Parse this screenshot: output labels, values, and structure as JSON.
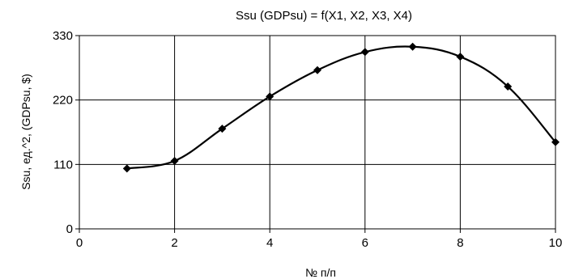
{
  "chart_data": {
    "type": "line",
    "title": "Ssu (GDPsu) = f(X1, X2, X3, X4)",
    "xlabel": "№ п/п",
    "ylabel": "Ssu, ед.^2, (GDPsu, $)",
    "xlim": [
      0,
      10
    ],
    "ylim": [
      0,
      330
    ],
    "x_ticks": [
      0,
      2,
      4,
      6,
      8,
      10
    ],
    "y_ticks": [
      0,
      110,
      220,
      330
    ],
    "grid": true,
    "legend": "none",
    "line_style": "smoothed",
    "marker": "diamond",
    "series_color": "#000000",
    "series": [
      {
        "x": [
          1,
          2,
          3,
          4,
          5,
          6,
          7,
          8,
          9,
          10
        ],
        "values": [
          103,
          116,
          171,
          226,
          271,
          302,
          311,
          294,
          243,
          148
        ]
      }
    ]
  }
}
